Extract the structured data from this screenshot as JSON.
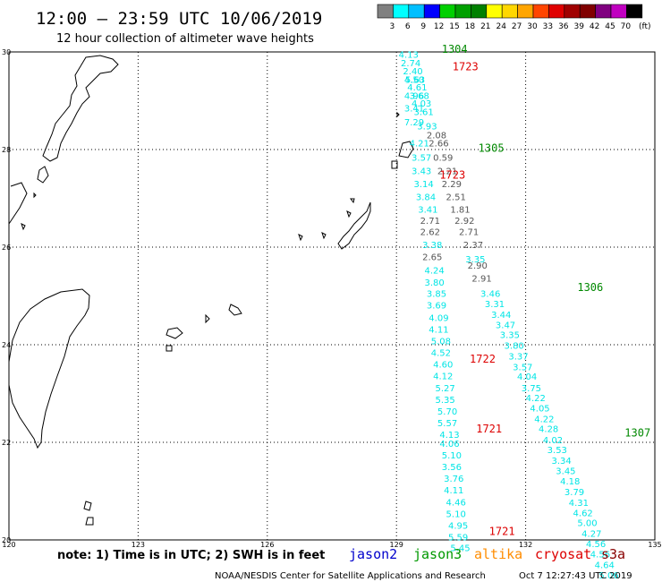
{
  "header": {
    "title": "12:00 — 23:59 UTC 10/06/2019",
    "subtitle": "12 hour collection of altimeter wave heights"
  },
  "legend": {
    "unit": "(ft)",
    "bins": [
      {
        "color": "#808080",
        "label": "3"
      },
      {
        "color": "#00ffff",
        "label": "6"
      },
      {
        "color": "#00bfff",
        "label": "9"
      },
      {
        "color": "#0000ff",
        "label": "12"
      },
      {
        "color": "#00d000",
        "label": "15"
      },
      {
        "color": "#00a000",
        "label": "18"
      },
      {
        "color": "#008000",
        "label": "21"
      },
      {
        "color": "#ffff00",
        "label": "24"
      },
      {
        "color": "#ffd700",
        "label": "27"
      },
      {
        "color": "#ffa500",
        "label": "30"
      },
      {
        "color": "#ff4500",
        "label": "33"
      },
      {
        "color": "#e00000",
        "label": "36"
      },
      {
        "color": "#a00000",
        "label": "39"
      },
      {
        "color": "#800000",
        "label": "42"
      },
      {
        "color": "#800080",
        "label": "45"
      },
      {
        "color": "#c000c0",
        "label": "70"
      },
      {
        "color": "#000000",
        "label": ""
      }
    ]
  },
  "axes": {
    "lat_labels": [
      "30",
      "28",
      "26",
      "24",
      "22",
      "20"
    ],
    "lon_labels": [
      "120",
      "123",
      "126",
      "129",
      "132",
      "135"
    ]
  },
  "footer": {
    "note": "note: 1) Time is in UTC; 2) SWH is in feet",
    "satellites": [
      {
        "name": "jason2",
        "color": "#0000cc"
      },
      {
        "name": "jason3",
        "color": "#009900"
      },
      {
        "name": "altika",
        "color": "#ff8c00"
      },
      {
        "name": "cryosat",
        "color": "#dd0000"
      },
      {
        "name": "s3a",
        "color": "#880000"
      }
    ],
    "credit": "NOAA/NESDIS Center for Satellite Applications and Research",
    "timestamp": "Oct  7 12:27:43 UTC 2019"
  },
  "colors": {
    "cyan": "#00e5e5",
    "gray": "#555555",
    "green": "#008800",
    "red": "#dd0000"
  },
  "time_labels": [
    {
      "text": "1304",
      "color": "green",
      "lon": 130.05,
      "lat": 29.98
    },
    {
      "text": "1723",
      "color": "red",
      "lon": 130.3,
      "lat": 29.62
    },
    {
      "text": "1305",
      "color": "green",
      "lon": 130.9,
      "lat": 27.95
    },
    {
      "text": "1723",
      "color": "red",
      "lon": 130.0,
      "lat": 27.4
    },
    {
      "text": "1306",
      "color": "green",
      "lon": 133.2,
      "lat": 25.1
    },
    {
      "text": "1722",
      "color": "red",
      "lon": 130.7,
      "lat": 23.63
    },
    {
      "text": "1721",
      "color": "red",
      "lon": 130.85,
      "lat": 22.2
    },
    {
      "text": "1307",
      "color": "green",
      "lon": 134.3,
      "lat": 22.12
    },
    {
      "text": "1721",
      "color": "red",
      "lon": 131.15,
      "lat": 20.1
    }
  ],
  "tracks": [
    {
      "id": "cryosat-north",
      "color": "cyan",
      "points": [
        {
          "lon": 129.05,
          "lat": 29.88,
          "v": "4.13"
        },
        {
          "lon": 129.1,
          "lat": 29.71,
          "v": "2.74"
        },
        {
          "lon": 129.15,
          "lat": 29.54,
          "v": "2.40"
        },
        {
          "lon": 129.2,
          "lat": 29.37,
          "v": "5.63"
        },
        {
          "lon": 129.25,
          "lat": 29.21,
          "v": "4.61"
        },
        {
          "lon": 129.3,
          "lat": 29.04,
          "v": "3.68"
        },
        {
          "lon": 129.35,
          "lat": 28.88,
          "v": "4.03"
        },
        {
          "lon": 129.4,
          "lat": 28.71,
          "v": "3.61"
        },
        {
          "lon": 129.48,
          "lat": 28.41,
          "v": "3.93"
        }
      ]
    },
    {
      "id": "cryosat-left",
      "color": "cyan",
      "points": [
        {
          "lon": 129.18,
          "lat": 29.37,
          "v": "4.50"
        },
        {
          "lon": 129.18,
          "lat": 29.04,
          "v": "4.96"
        },
        {
          "lon": 129.18,
          "lat": 28.78,
          "v": "3.41"
        },
        {
          "lon": 129.18,
          "lat": 28.5,
          "v": "7.29"
        }
      ]
    },
    {
      "id": "jason3-gray",
      "color": "gray",
      "points": [
        {
          "lon": 129.7,
          "lat": 28.23,
          "v": "2.08"
        },
        {
          "lon": 129.75,
          "lat": 28.06,
          "v": "2.66"
        },
        {
          "lon": 129.85,
          "lat": 27.77,
          "v": "0.59"
        },
        {
          "lon": 129.95,
          "lat": 27.5,
          "v": "2.21"
        },
        {
          "lon": 130.05,
          "lat": 27.23,
          "v": "2.29"
        },
        {
          "lon": 130.15,
          "lat": 26.96,
          "v": "2.51"
        },
        {
          "lon": 130.25,
          "lat": 26.71,
          "v": "1.81"
        },
        {
          "lon": 130.35,
          "lat": 26.48,
          "v": "2.92"
        },
        {
          "lon": 130.45,
          "lat": 26.25,
          "v": "2.71"
        },
        {
          "lon": 130.55,
          "lat": 25.98,
          "v": "2.37"
        },
        {
          "lon": 130.65,
          "lat": 25.56,
          "v": "2.90"
        },
        {
          "lon": 130.75,
          "lat": 25.29,
          "v": "2.91"
        }
      ]
    },
    {
      "id": "jason3-cyan",
      "color": "cyan",
      "points": [
        {
          "lon": 130.6,
          "lat": 25.69,
          "v": "3.35"
        },
        {
          "lon": 130.95,
          "lat": 24.98,
          "v": "3.46"
        },
        {
          "lon": 131.05,
          "lat": 24.77,
          "v": "3.31"
        },
        {
          "lon": 131.2,
          "lat": 24.55,
          "v": "3.44"
        },
        {
          "lon": 131.3,
          "lat": 24.34,
          "v": "3.47"
        },
        {
          "lon": 131.4,
          "lat": 24.14,
          "v": "3.35"
        },
        {
          "lon": 131.5,
          "lat": 23.92,
          "v": "3.80"
        },
        {
          "lon": 131.6,
          "lat": 23.7,
          "v": "3.37"
        },
        {
          "lon": 131.7,
          "lat": 23.48,
          "v": "3.57"
        },
        {
          "lon": 131.8,
          "lat": 23.28,
          "v": "4.04"
        },
        {
          "lon": 131.9,
          "lat": 23.05,
          "v": "3.75"
        },
        {
          "lon": 132.0,
          "lat": 22.84,
          "v": "4.22"
        },
        {
          "lon": 132.1,
          "lat": 22.63,
          "v": "4.05"
        },
        {
          "lon": 132.2,
          "lat": 22.41,
          "v": "4.22"
        },
        {
          "lon": 132.3,
          "lat": 22.21,
          "v": "4.28"
        },
        {
          "lon": 132.4,
          "lat": 21.98,
          "v": "4.02"
        },
        {
          "lon": 132.5,
          "lat": 21.78,
          "v": "3.53"
        },
        {
          "lon": 132.6,
          "lat": 21.56,
          "v": "3.34"
        },
        {
          "lon": 132.7,
          "lat": 21.35,
          "v": "3.45"
        },
        {
          "lon": 132.8,
          "lat": 21.14,
          "v": "4.18"
        },
        {
          "lon": 132.9,
          "lat": 20.92,
          "v": "3.79"
        },
        {
          "lon": 133.0,
          "lat": 20.7,
          "v": "4.31"
        },
        {
          "lon": 133.1,
          "lat": 20.49,
          "v": "4.62"
        },
        {
          "lon": 133.2,
          "lat": 20.28,
          "v": "5.00"
        },
        {
          "lon": 133.3,
          "lat": 20.06,
          "v": "4.27"
        },
        {
          "lon": 133.4,
          "lat": 19.85,
          "v": "4.56"
        },
        {
          "lon": 133.5,
          "lat": 19.64,
          "v": "4.56"
        },
        {
          "lon": 133.6,
          "lat": 19.42,
          "v": "4.64"
        },
        {
          "lon": 133.7,
          "lat": 19.21,
          "v": "5.06"
        }
      ]
    },
    {
      "id": "cryosat-mid-a",
      "color": "cyan",
      "points": [
        {
          "lon": 129.3,
          "lat": 28.06,
          "v": "4.21"
        },
        {
          "lon": 129.35,
          "lat": 27.77,
          "v": "3.57"
        },
        {
          "lon": 129.35,
          "lat": 27.5,
          "v": "3.43"
        },
        {
          "lon": 129.4,
          "lat": 27.23,
          "v": "3.14"
        },
        {
          "lon": 129.45,
          "lat": 26.96,
          "v": "3.84"
        },
        {
          "lon": 129.5,
          "lat": 26.71,
          "v": "3.41"
        }
      ]
    },
    {
      "id": "cryosat-mid-gray",
      "color": "gray",
      "points": [
        {
          "lon": 129.55,
          "lat": 26.48,
          "v": "2.71"
        },
        {
          "lon": 129.55,
          "lat": 26.25,
          "v": "2.62"
        }
      ]
    },
    {
      "id": "cryosat-mid-b",
      "color": "cyan",
      "points": [
        {
          "lon": 129.6,
          "lat": 25.98,
          "v": "3.38"
        }
      ]
    },
    {
      "id": "cryosat-mid-gray2",
      "color": "gray",
      "points": [
        {
          "lon": 129.6,
          "lat": 25.73,
          "v": "2.65"
        }
      ]
    },
    {
      "id": "cryosat-south",
      "color": "cyan",
      "points": [
        {
          "lon": 129.65,
          "lat": 25.46,
          "v": "4.24"
        },
        {
          "lon": 129.65,
          "lat": 25.21,
          "v": "3.80"
        },
        {
          "lon": 129.7,
          "lat": 24.98,
          "v": "3.85"
        },
        {
          "lon": 129.7,
          "lat": 24.74,
          "v": "3.69"
        },
        {
          "lon": 129.75,
          "lat": 24.49,
          "v": "4.09"
        },
        {
          "lon": 129.75,
          "lat": 24.25,
          "v": "4.11"
        },
        {
          "lon": 129.8,
          "lat": 24.01,
          "v": "5.08"
        },
        {
          "lon": 129.8,
          "lat": 23.77,
          "v": "4.52"
        },
        {
          "lon": 129.85,
          "lat": 23.53,
          "v": "4.60"
        },
        {
          "lon": 129.85,
          "lat": 23.29,
          "v": "4.12"
        },
        {
          "lon": 129.9,
          "lat": 23.05,
          "v": "5.27"
        },
        {
          "lon": 129.9,
          "lat": 22.81,
          "v": "5.35"
        },
        {
          "lon": 129.95,
          "lat": 22.57,
          "v": "5.70"
        },
        {
          "lon": 129.95,
          "lat": 22.33,
          "v": "5.57"
        },
        {
          "lon": 130.0,
          "lat": 22.09,
          "v": "4.13"
        },
        {
          "lon": 130.0,
          "lat": 21.91,
          "v": "4.06"
        },
        {
          "lon": 130.05,
          "lat": 21.67,
          "v": "5.10"
        },
        {
          "lon": 130.05,
          "lat": 21.43,
          "v": "3.56"
        },
        {
          "lon": 130.1,
          "lat": 21.19,
          "v": "3.76"
        },
        {
          "lon": 130.1,
          "lat": 20.95,
          "v": "4.11"
        },
        {
          "lon": 130.15,
          "lat": 20.71,
          "v": "4.46"
        },
        {
          "lon": 130.15,
          "lat": 20.47,
          "v": "5.10"
        },
        {
          "lon": 130.2,
          "lat": 20.23,
          "v": "4.95"
        },
        {
          "lon": 130.2,
          "lat": 19.99,
          "v": "5.59"
        },
        {
          "lon": 130.25,
          "lat": 19.77,
          "v": "5.45"
        }
      ]
    }
  ]
}
